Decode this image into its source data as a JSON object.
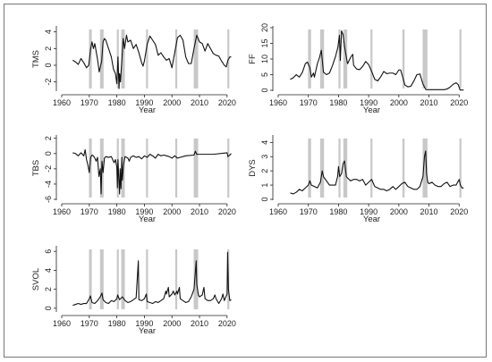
{
  "chart_data": [
    {
      "type": "line",
      "ylabel": "TMS",
      "xlabel": "Year",
      "xlim": [
        1960,
        2022
      ],
      "ylim": [
        -3,
        4.5
      ],
      "x_ticks": [
        1960,
        1970,
        1980,
        1990,
        2000,
        2010,
        2020
      ],
      "y_ticks": [
        -2,
        0,
        2,
        4
      ],
      "recessions": [
        [
          1969.9,
          1970.9
        ],
        [
          1973.9,
          1975.2
        ],
        [
          1980.0,
          1980.6
        ],
        [
          1981.6,
          1982.9
        ],
        [
          1990.6,
          1991.2
        ],
        [
          2001.2,
          2001.9
        ],
        [
          2007.9,
          2009.5
        ],
        [
          2020.1,
          2020.4
        ]
      ],
      "series": [
        {
          "x": [
            1964,
            1965,
            1966,
            1967,
            1968,
            1969,
            1969.8,
            1970.5,
            1971,
            1971.5,
            1972,
            1973,
            1973.6,
            1974.5,
            1975,
            1975.5,
            1976,
            1977,
            1978,
            1978.8,
            1979.5,
            1980,
            1980.4,
            1980.8,
            1981,
            1981.3,
            1981.8,
            1982.3,
            1982.8,
            1983.5,
            1984,
            1985,
            1986,
            1987,
            1988,
            1989,
            1989.5,
            1990,
            1991,
            1992,
            1993,
            1994,
            1995,
            1996,
            1997,
            1998,
            1999,
            2000,
            2001,
            2002,
            2003,
            2004,
            2005,
            2006,
            2007,
            2008,
            2009,
            2010,
            2011,
            2012,
            2013,
            2014,
            2015,
            2016,
            2017,
            2018,
            2019,
            2019.7,
            2020.3,
            2021,
            2021.5
          ],
          "values": [
            0.6,
            0.4,
            0.1,
            0.8,
            0.3,
            -0.3,
            0.0,
            2.0,
            2.8,
            2.0,
            2.6,
            0.7,
            -0.8,
            0.5,
            2.8,
            3.2,
            3.0,
            2.0,
            1.0,
            -0.5,
            -1.0,
            -2.2,
            1.0,
            -2.8,
            -1.0,
            -2.0,
            0.5,
            3.2,
            2.0,
            3.6,
            2.8,
            3.0,
            2.0,
            2.5,
            1.5,
            0.3,
            -0.1,
            0.5,
            2.5,
            3.5,
            3.0,
            2.5,
            1.2,
            1.5,
            1.0,
            0.6,
            0.8,
            -0.3,
            1.5,
            3.3,
            3.6,
            3.0,
            1.0,
            0.2,
            0.2,
            2.0,
            3.6,
            2.8,
            2.6,
            1.7,
            2.6,
            2.0,
            1.4,
            1.2,
            1.1,
            0.5,
            0.0,
            -0.2,
            0.6,
            1.0,
            1.0
          ]
        }
      ]
    },
    {
      "type": "line",
      "ylabel": "FF",
      "xlabel": "Year",
      "xlim": [
        1960,
        2022
      ],
      "ylim": [
        0,
        20
      ],
      "x_ticks": [
        1960,
        1970,
        1980,
        1990,
        2000,
        2010,
        2020
      ],
      "y_ticks": [
        0,
        5,
        10,
        15,
        20
      ],
      "recessions": [
        [
          1969.9,
          1970.9
        ],
        [
          1973.9,
          1975.2
        ],
        [
          1980.0,
          1980.6
        ],
        [
          1981.6,
          1982.9
        ],
        [
          1990.6,
          1991.2
        ],
        [
          2001.2,
          2001.9
        ],
        [
          2007.9,
          2009.5
        ],
        [
          2020.1,
          2020.4
        ]
      ],
      "series": [
        {
          "x": [
            1964,
            1965,
            1966,
            1967,
            1968,
            1969,
            1969.7,
            1970.5,
            1971,
            1971.7,
            1972,
            1973,
            1973.7,
            1974.3,
            1975,
            1976,
            1977,
            1978,
            1979,
            1979.8,
            1980.3,
            1980.6,
            1981,
            1981.5,
            1982,
            1982.7,
            1983,
            1984,
            1984.7,
            1985,
            1986,
            1987,
            1988,
            1989,
            1990,
            1991,
            1992,
            1993,
            1994,
            1995,
            1996,
            1997,
            1998,
            1999,
            2000,
            2000.6,
            2001.5,
            2002,
            2003,
            2004,
            2005,
            2006,
            2007,
            2008,
            2008.8,
            2009,
            2010,
            2015,
            2016,
            2017,
            2018,
            2019,
            2019.7,
            2020.3,
            2021,
            2021.5
          ],
          "values": [
            3.5,
            4.0,
            5.0,
            4.2,
            5.7,
            8.5,
            9.0,
            7.2,
            4.2,
            5.5,
            4.2,
            8.5,
            10.5,
            12.8,
            5.8,
            5.0,
            5.5,
            7.9,
            10.8,
            13.8,
            17.6,
            9.5,
            19.0,
            17.8,
            14.0,
            10.0,
            8.5,
            10.5,
            11.5,
            8.0,
            6.8,
            6.6,
            7.6,
            9.2,
            8.2,
            6.0,
            3.5,
            3.0,
            4.3,
            6.0,
            5.3,
            5.5,
            5.5,
            5.0,
            6.5,
            6.5,
            3.5,
            1.7,
            1.1,
            1.3,
            3.0,
            5.0,
            5.2,
            2.0,
            0.5,
            0.2,
            0.2,
            0.2,
            0.4,
            1.0,
            1.9,
            2.4,
            1.8,
            0.1,
            0.1,
            0.1
          ]
        }
      ]
    },
    {
      "type": "line",
      "ylabel": "TBS",
      "xlabel": "Year",
      "xlim": [
        1960,
        2022
      ],
      "ylim": [
        -6,
        2.2
      ],
      "x_ticks": [
        1960,
        1970,
        1980,
        1990,
        2000,
        2010,
        2020
      ],
      "y_ticks": [
        -6,
        -4,
        -2,
        0,
        2
      ],
      "recessions": [
        [
          1969.9,
          1970.9
        ],
        [
          1973.9,
          1975.2
        ],
        [
          1980.0,
          1980.6
        ],
        [
          1981.6,
          1982.9
        ],
        [
          1990.6,
          1991.2
        ],
        [
          2001.2,
          2001.9
        ],
        [
          2007.9,
          2009.5
        ],
        [
          2020.1,
          2020.4
        ]
      ],
      "series": [
        {
          "x": [
            1964,
            1965,
            1966,
            1967,
            1968,
            1968.5,
            1969,
            1969.5,
            1970,
            1970.5,
            1971,
            1971.5,
            1972,
            1972.5,
            1973,
            1973.5,
            1974,
            1974.3,
            1974.6,
            1975,
            1975.5,
            1976,
            1977,
            1978,
            1979,
            1979.5,
            1980,
            1980.2,
            1980.4,
            1980.7,
            1981,
            1981.2,
            1981.5,
            1981.8,
            1982,
            1982.4,
            1982.8,
            1983,
            1984,
            1984.5,
            1985,
            1986,
            1987,
            1988,
            1989,
            1990,
            1991,
            1992,
            1993,
            1994,
            1995,
            1996,
            1997,
            1998,
            1999,
            2000,
            2001,
            2002,
            2005,
            2008,
            2008.5,
            2009,
            2010,
            2015,
            2020,
            2020.3,
            2021,
            2021.5
          ],
          "values": [
            0.1,
            0.0,
            -0.3,
            0.1,
            -0.3,
            0.5,
            -0.8,
            -1.5,
            -2.5,
            -0.5,
            -0.2,
            -0.3,
            -0.6,
            -1.0,
            -0.5,
            -3.0,
            -2.0,
            -5.3,
            -1.0,
            -2.5,
            -0.6,
            -0.4,
            -0.5,
            -0.4,
            -1.2,
            -0.8,
            -1.8,
            -4.5,
            -0.8,
            -3.2,
            -5.3,
            -2.0,
            -4.6,
            -0.5,
            -3.5,
            -1.5,
            -0.7,
            -0.4,
            -0.6,
            -1.0,
            -0.5,
            -0.3,
            -0.5,
            -0.4,
            -0.7,
            -0.3,
            -0.5,
            -0.1,
            -0.3,
            -0.6,
            -0.1,
            -0.3,
            -0.2,
            -0.3,
            -0.4,
            -0.6,
            -0.3,
            -0.6,
            -0.3,
            -0.2,
            0.3,
            -0.1,
            -0.1,
            -0.1,
            0.1,
            -0.4,
            -0.2,
            0.0
          ]
        }
      ]
    },
    {
      "type": "line",
      "ylabel": "DYS",
      "xlabel": "Year",
      "xlim": [
        1960,
        2022
      ],
      "ylim": [
        0,
        4.4
      ],
      "x_ticks": [
        1960,
        1970,
        1980,
        1990,
        2000,
        2010,
        2020
      ],
      "y_ticks": [
        0,
        1,
        2,
        3,
        4
      ],
      "recessions": [
        [
          1969.9,
          1970.9
        ],
        [
          1973.9,
          1975.2
        ],
        [
          1980.0,
          1980.6
        ],
        [
          1981.6,
          1982.9
        ],
        [
          1990.6,
          1991.2
        ],
        [
          2001.2,
          2001.9
        ],
        [
          2007.9,
          2009.5
        ],
        [
          2020.1,
          2020.4
        ]
      ],
      "series": [
        {
          "x": [
            1964,
            1965,
            1966,
            1967,
            1968,
            1969,
            1970,
            1970.5,
            1971,
            1972,
            1973,
            1974,
            1974.6,
            1975,
            1976,
            1977,
            1978,
            1979,
            1979.7,
            1980,
            1980.4,
            1981,
            1981.5,
            1982,
            1982.6,
            1983,
            1984,
            1985,
            1986,
            1987,
            1988,
            1989,
            1990,
            1991,
            1992,
            1993,
            1994,
            1995,
            1996,
            1997,
            1998,
            1999,
            2000,
            2001,
            2002,
            2003,
            2004,
            2005,
            2006,
            2007,
            2008,
            2008.5,
            2008.9,
            2009.2,
            2009.6,
            2010,
            2011,
            2012,
            2013,
            2014,
            2015,
            2016,
            2017,
            2018,
            2019,
            2020,
            2020.4,
            2021,
            2021.5
          ],
          "values": [
            0.45,
            0.38,
            0.5,
            0.7,
            0.6,
            0.8,
            1.0,
            1.3,
            1.0,
            0.9,
            0.8,
            1.2,
            2.0,
            1.6,
            1.3,
            1.0,
            1.0,
            1.0,
            1.6,
            2.3,
            1.6,
            1.8,
            2.5,
            2.7,
            1.6,
            1.5,
            1.3,
            1.4,
            1.4,
            1.3,
            1.4,
            1.0,
            1.2,
            1.4,
            0.9,
            0.8,
            0.7,
            0.7,
            0.6,
            0.7,
            0.9,
            0.7,
            0.9,
            1.1,
            1.2,
            0.9,
            0.8,
            0.7,
            0.7,
            0.9,
            1.6,
            3.0,
            3.4,
            1.8,
            1.2,
            1.1,
            1.2,
            1.0,
            0.9,
            0.9,
            1.1,
            1.2,
            0.9,
            1.0,
            1.0,
            1.4,
            1.0,
            0.8,
            0.8
          ]
        }
      ]
    },
    {
      "type": "line",
      "ylabel": "SVOL",
      "xlabel": "Year",
      "xlim": [
        1960,
        2022
      ],
      "ylim": [
        -0.3,
        6.4
      ],
      "x_ticks": [
        1960,
        1970,
        1980,
        1990,
        2000,
        2010,
        2020
      ],
      "y_ticks": [
        0,
        2,
        4,
        6
      ],
      "recessions": [
        [
          1969.9,
          1970.9
        ],
        [
          1973.9,
          1975.2
        ],
        [
          1980.0,
          1980.6
        ],
        [
          1981.6,
          1982.9
        ],
        [
          1990.6,
          1991.2
        ],
        [
          2001.2,
          2001.9
        ],
        [
          2007.9,
          2009.5
        ],
        [
          2020.1,
          2020.4
        ]
      ],
      "series": [
        {
          "x": [
            1964,
            1965,
            1966,
            1967,
            1968,
            1969,
            1970,
            1970.4,
            1971,
            1972,
            1973,
            1974,
            1974.6,
            1975,
            1976,
            1977,
            1978,
            1979,
            1980,
            1980.3,
            1981,
            1982,
            1983,
            1984,
            1985,
            1986,
            1987,
            1987.8,
            1988,
            1989,
            1990,
            1990.7,
            1991,
            1992,
            1993,
            1994,
            1995,
            1996,
            1997,
            1997.8,
            1998,
            1998.7,
            1999,
            2000,
            2000.5,
            2001,
            2001.8,
            2002,
            2002.7,
            2003,
            2004,
            2005,
            2006,
            2007,
            2008,
            2008.8,
            2009,
            2009.6,
            2010,
            2011,
            2011.6,
            2012,
            2013,
            2014,
            2015,
            2015.6,
            2016,
            2017,
            2018,
            2018.5,
            2019,
            2020,
            2020.2,
            2020.5,
            2021,
            2021.5
          ],
          "values": [
            0.3,
            0.4,
            0.5,
            0.4,
            0.5,
            0.5,
            1.0,
            1.3,
            0.6,
            0.5,
            0.8,
            1.2,
            1.6,
            0.9,
            0.6,
            0.5,
            0.8,
            0.7,
            1.0,
            1.4,
            0.9,
            1.2,
            0.8,
            0.6,
            0.7,
            0.9,
            1.1,
            5.0,
            0.9,
            0.8,
            1.0,
            1.5,
            0.7,
            0.6,
            0.5,
            0.7,
            0.6,
            0.8,
            1.0,
            1.8,
            1.5,
            2.2,
            1.2,
            1.5,
            1.8,
            1.4,
            1.8,
            1.5,
            2.2,
            1.0,
            0.8,
            0.6,
            0.7,
            1.2,
            2.0,
            5.0,
            2.5,
            1.4,
            1.2,
            1.4,
            2.2,
            1.0,
            0.8,
            0.8,
            1.0,
            1.4,
            1.0,
            0.5,
            1.0,
            1.5,
            0.8,
            1.5,
            5.9,
            2.0,
            0.8,
            0.9
          ]
        }
      ]
    }
  ]
}
